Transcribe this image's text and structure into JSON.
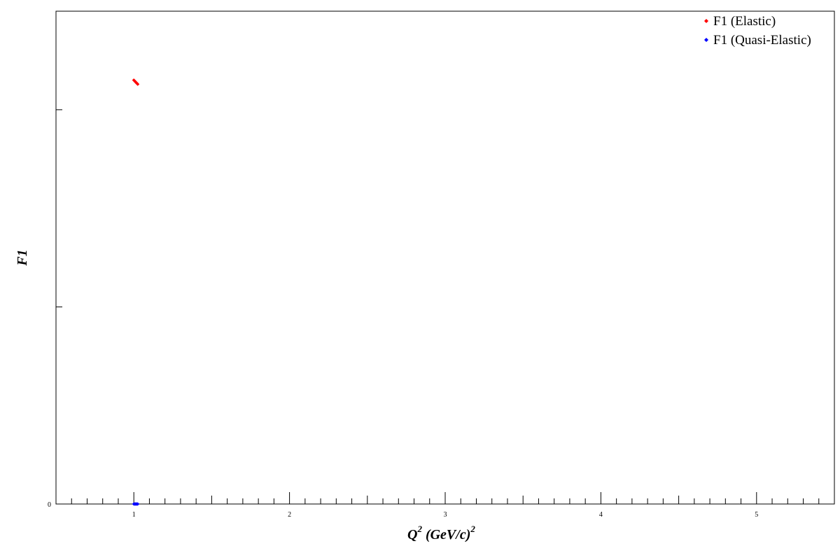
{
  "chart_data": {
    "type": "scatter",
    "xlabel": {
      "base": "Q",
      "sup1": "2",
      "middle": " (GeV/c)",
      "sup2": "2"
    },
    "ylabel": "F1",
    "xlim": [
      0.5,
      5.5
    ],
    "ylim": [
      0,
      1.25
    ],
    "x_major_ticks": [
      1,
      2,
      3,
      4,
      5
    ],
    "x_tick_labels": [
      "1",
      "2",
      "3",
      "4",
      "5"
    ],
    "x_minor_step": 0.1,
    "y_major_ticks": [
      0,
      0.5,
      1.0
    ],
    "y_tick_labels": [
      "0",
      "",
      ""
    ],
    "grid": false,
    "legend_position": "top-right",
    "series": [
      {
        "name": "F1 (Elastic)",
        "color": "#ff0000",
        "points": [
          [
            1.0,
            1.075
          ],
          [
            1.005,
            1.073
          ],
          [
            1.01,
            1.071
          ],
          [
            1.015,
            1.069
          ],
          [
            1.02,
            1.067
          ],
          [
            1.025,
            1.065
          ]
        ]
      },
      {
        "name": "F1 (Quasi-Elastic)",
        "color": "#0000ff",
        "points": [
          [
            1.0,
            0.0
          ],
          [
            1.005,
            0.0
          ],
          [
            1.01,
            0.0
          ],
          [
            1.015,
            0.0
          ],
          [
            1.02,
            0.0
          ],
          [
            1.025,
            0.0
          ]
        ]
      }
    ]
  }
}
